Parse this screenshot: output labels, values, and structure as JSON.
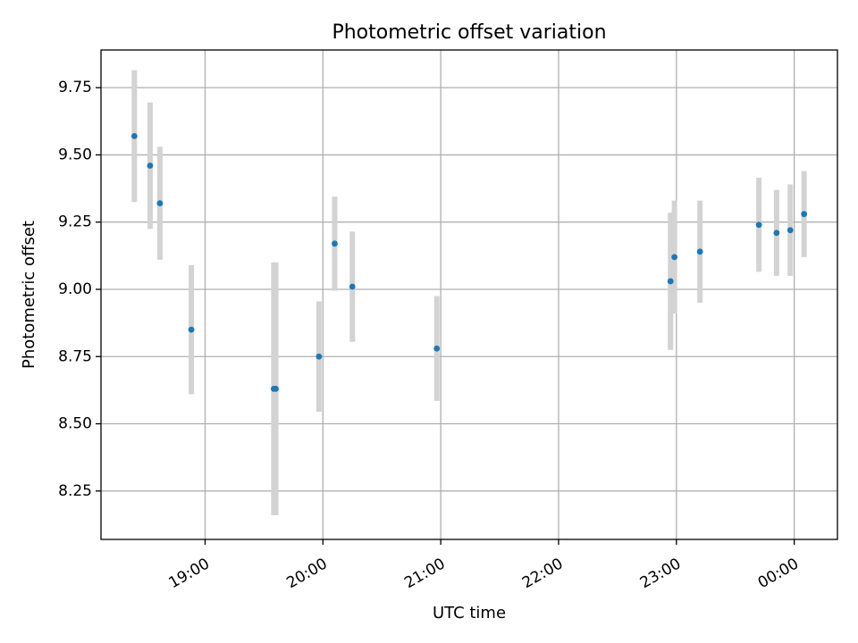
{
  "chart_data": {
    "type": "scatter",
    "title": "Photometric offset variation",
    "xlabel": "UTC time",
    "ylabel": "Photometric offset",
    "grid": true,
    "xlim": [
      "18:07",
      "00:22"
    ],
    "ylim": [
      8.07,
      9.89
    ],
    "x_ticks": [
      "19:00",
      "20:00",
      "21:00",
      "22:00",
      "23:00",
      "00:00"
    ],
    "y_ticks": [
      8.25,
      8.5,
      8.75,
      9.0,
      9.25,
      9.5,
      9.75
    ],
    "y_tick_labels": [
      "8.25",
      "8.50",
      "8.75",
      "9.00",
      "9.25",
      "9.50",
      "9.75"
    ],
    "marker_color": "#1f77b4",
    "errorbar_color": "#d3d3d3",
    "points": [
      {
        "x": "18:24",
        "y": 9.57,
        "yerr": 0.245
      },
      {
        "x": "18:32",
        "y": 9.46,
        "yerr": 0.235
      },
      {
        "x": "18:37",
        "y": 9.32,
        "yerr": 0.21
      },
      {
        "x": "18:53",
        "y": 8.85,
        "yerr": 0.24
      },
      {
        "x": "19:35",
        "y": 8.63,
        "yerr": 0.47
      },
      {
        "x": "19:36",
        "y": 8.63,
        "yerr": 0.47
      },
      {
        "x": "19:58",
        "y": 8.75,
        "yerr": 0.205
      },
      {
        "x": "20:06",
        "y": 9.17,
        "yerr": 0.175
      },
      {
        "x": "20:15",
        "y": 9.01,
        "yerr": 0.205
      },
      {
        "x": "20:58",
        "y": 8.78,
        "yerr": 0.195
      },
      {
        "x": "22:57",
        "y": 9.03,
        "yerr": 0.255
      },
      {
        "x": "22:59",
        "y": 9.12,
        "yerr": 0.21
      },
      {
        "x": "23:12",
        "y": 9.14,
        "yerr": 0.19
      },
      {
        "x": "23:42",
        "y": 9.24,
        "yerr": 0.175
      },
      {
        "x": "23:51",
        "y": 9.21,
        "yerr": 0.16
      },
      {
        "x": "23:58",
        "y": 9.22,
        "yerr": 0.17
      },
      {
        "x": "00:05",
        "y": 9.28,
        "yerr": 0.16
      }
    ]
  }
}
